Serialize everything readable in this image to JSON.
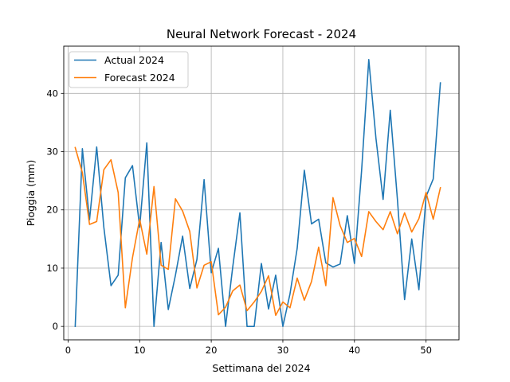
{
  "chart_data": {
    "type": "line",
    "title": "Neural Network Forecast - 2024",
    "xlabel": "Settimana del 2024",
    "ylabel": "Pioggia (mm)",
    "xlim": [
      -0.6,
      54.6
    ],
    "ylim": [
      -2.3,
      48.1
    ],
    "xticks": [
      0,
      10,
      20,
      30,
      40,
      50
    ],
    "yticks": [
      0,
      10,
      20,
      30,
      40
    ],
    "grid": true,
    "legend_position": "top-left",
    "x": [
      1,
      2,
      3,
      4,
      5,
      6,
      7,
      8,
      9,
      10,
      11,
      12,
      13,
      14,
      15,
      16,
      17,
      18,
      19,
      20,
      21,
      22,
      23,
      24,
      25,
      26,
      27,
      28,
      29,
      30,
      31,
      32,
      33,
      34,
      35,
      36,
      37,
      38,
      39,
      40,
      41,
      42,
      43,
      44,
      45,
      46,
      47,
      48,
      49,
      50,
      51,
      52
    ],
    "series": [
      {
        "name": "Actual 2024",
        "color": "#1f77b4",
        "values": [
          0.0,
          30.5,
          18.3,
          30.8,
          17.0,
          7.0,
          8.8,
          25.5,
          27.6,
          17.0,
          31.5,
          0.0,
          14.4,
          2.9,
          8.8,
          15.5,
          6.5,
          11.5,
          25.2,
          9.2,
          13.4,
          0.0,
          10.2,
          19.5,
          0.0,
          0.0,
          10.8,
          3.0,
          8.8,
          0.0,
          5.6,
          13.4,
          26.8,
          17.6,
          18.4,
          10.9,
          10.2,
          10.7,
          19.0,
          10.8,
          26.8,
          45.8,
          32.3,
          21.8,
          37.1,
          21.8,
          4.6,
          15.0,
          6.3,
          22.3,
          25.3,
          41.8
        ]
      },
      {
        "name": "Forecast 2024",
        "color": "#ff7f0e",
        "values": [
          30.7,
          26.4,
          17.5,
          18.0,
          26.9,
          28.6,
          23.0,
          3.2,
          11.8,
          18.4,
          12.4,
          24.0,
          10.5,
          9.8,
          21.9,
          19.8,
          16.3,
          6.6,
          10.5,
          11.1,
          2.0,
          3.3,
          6.1,
          7.1,
          2.7,
          4.2,
          6.0,
          8.7,
          1.9,
          4.2,
          3.2,
          8.3,
          4.5,
          7.7,
          13.6,
          7.0,
          22.1,
          17.3,
          14.4,
          15.1,
          12.0,
          19.7,
          18.0,
          16.6,
          19.7,
          15.9,
          19.5,
          16.2,
          18.5,
          23.0,
          18.4,
          23.8
        ]
      }
    ]
  }
}
